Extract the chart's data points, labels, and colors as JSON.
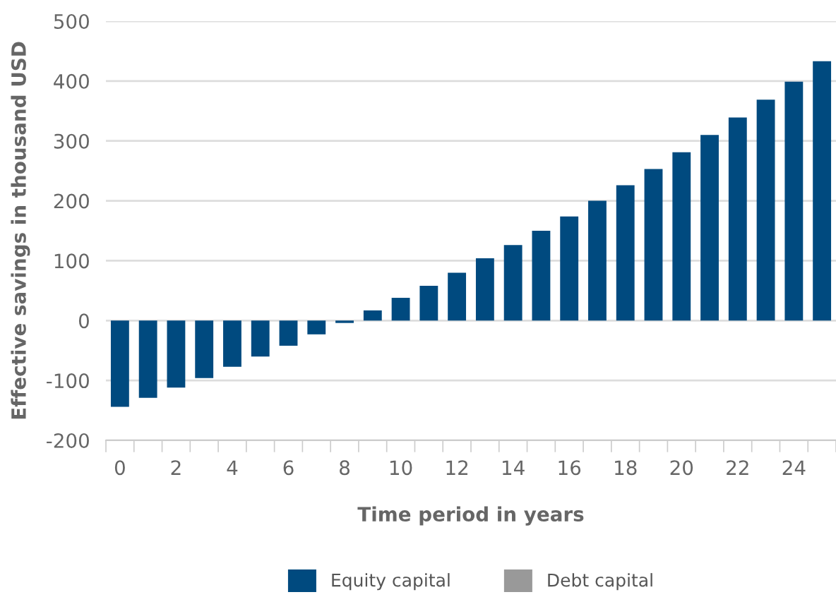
{
  "chart_data": {
    "type": "bar",
    "xlabel": "Time period in years",
    "ylabel": "Effective savings in thousand USD",
    "categories": [
      "0",
      null,
      "2",
      null,
      "4",
      null,
      "6",
      null,
      "8",
      null,
      "10",
      null,
      "12",
      null,
      "14",
      null,
      "16",
      null,
      "18",
      null,
      "20",
      null,
      "22",
      null,
      "24",
      null
    ],
    "series": [
      {
        "name": "Equity capital",
        "color": "#004a7f",
        "values": [
          -144,
          -129,
          -112,
          -96,
          -77,
          -60,
          -42,
          -23,
          -4,
          17,
          38,
          58,
          80,
          104,
          126,
          150,
          174,
          200,
          226,
          253,
          281,
          310,
          339,
          369,
          399,
          433
        ]
      },
      {
        "name": "Debt capital",
        "color": "#999999",
        "values": [
          null,
          null,
          null,
          null,
          null,
          null,
          null,
          null,
          null,
          null,
          null,
          null,
          null,
          null,
          null,
          null,
          null,
          null,
          null,
          null,
          null,
          null,
          null,
          null,
          null,
          null
        ]
      }
    ],
    "ylim": [
      -200,
      500
    ],
    "yticks": [
      -200,
      -100,
      0,
      100,
      200,
      300,
      400,
      500
    ],
    "grid": "y",
    "legend": "bottom"
  }
}
